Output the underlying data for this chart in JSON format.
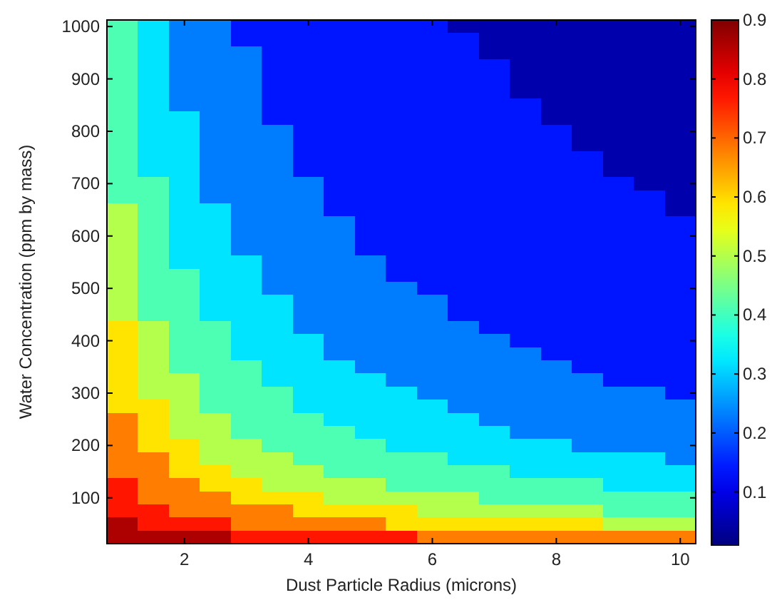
{
  "chart_data": {
    "type": "heatmap",
    "xlabel": "Dust Particle Radius (microns)",
    "ylabel": "Water Concentration (ppm by mass)",
    "categories": [
      null,
      null,
      "2",
      null,
      null,
      null,
      "4",
      null,
      null,
      null,
      "6",
      null,
      null,
      null,
      "8",
      null,
      null,
      null,
      "10"
    ],
    "y_categories": [
      "1000",
      null,
      null,
      null,
      "900",
      null,
      null,
      null,
      "800",
      null,
      null,
      null,
      "700",
      null,
      null,
      null,
      "600",
      null,
      null,
      null,
      "500",
      null,
      null,
      null,
      "400",
      null,
      null,
      null,
      "300",
      null,
      null,
      null,
      "200",
      null,
      null,
      null,
      "100",
      null,
      null,
      null
    ],
    "clim": [
      0.01,
      0.9
    ],
    "cticks": [
      0.1,
      0.2,
      0.3,
      0.4,
      0.5,
      0.6,
      0.7,
      0.8,
      0.9
    ],
    "cells": [
      [
        0.41,
        0.32,
        0.23,
        0.23,
        0.14,
        0.14,
        0.14,
        0.14,
        0.14,
        0.14,
        0.14,
        0.05,
        0.05,
        0.05,
        0.05,
        0.05,
        0.05,
        0.05,
        0.05
      ],
      [
        0.41,
        0.32,
        0.23,
        0.23,
        0.14,
        0.14,
        0.14,
        0.14,
        0.14,
        0.14,
        0.14,
        0.14,
        0.05,
        0.05,
        0.05,
        0.05,
        0.05,
        0.05,
        0.05
      ],
      [
        0.41,
        0.32,
        0.23,
        0.23,
        0.23,
        0.14,
        0.14,
        0.14,
        0.14,
        0.14,
        0.14,
        0.14,
        0.05,
        0.05,
        0.05,
        0.05,
        0.05,
        0.05,
        0.05
      ],
      [
        0.41,
        0.32,
        0.23,
        0.23,
        0.23,
        0.14,
        0.14,
        0.14,
        0.14,
        0.14,
        0.14,
        0.14,
        0.14,
        0.05,
        0.05,
        0.05,
        0.05,
        0.05,
        0.05
      ],
      [
        0.41,
        0.32,
        0.23,
        0.23,
        0.23,
        0.14,
        0.14,
        0.14,
        0.14,
        0.14,
        0.14,
        0.14,
        0.14,
        0.05,
        0.05,
        0.05,
        0.05,
        0.05,
        0.05
      ],
      [
        0.41,
        0.32,
        0.23,
        0.23,
        0.23,
        0.14,
        0.14,
        0.14,
        0.14,
        0.14,
        0.14,
        0.14,
        0.14,
        0.05,
        0.05,
        0.05,
        0.05,
        0.05,
        0.05
      ],
      [
        0.41,
        0.32,
        0.23,
        0.23,
        0.23,
        0.14,
        0.14,
        0.14,
        0.14,
        0.14,
        0.14,
        0.14,
        0.14,
        0.14,
        0.05,
        0.05,
        0.05,
        0.05,
        0.05
      ],
      [
        0.41,
        0.32,
        0.32,
        0.23,
        0.23,
        0.14,
        0.14,
        0.14,
        0.14,
        0.14,
        0.14,
        0.14,
        0.14,
        0.14,
        0.05,
        0.05,
        0.05,
        0.05,
        0.05
      ],
      [
        0.41,
        0.32,
        0.32,
        0.23,
        0.23,
        0.23,
        0.14,
        0.14,
        0.14,
        0.14,
        0.14,
        0.14,
        0.14,
        0.14,
        0.14,
        0.05,
        0.05,
        0.05,
        0.05
      ],
      [
        0.41,
        0.32,
        0.32,
        0.23,
        0.23,
        0.23,
        0.14,
        0.14,
        0.14,
        0.14,
        0.14,
        0.14,
        0.14,
        0.14,
        0.14,
        0.05,
        0.05,
        0.05,
        0.05
      ],
      [
        0.41,
        0.32,
        0.32,
        0.23,
        0.23,
        0.23,
        0.14,
        0.14,
        0.14,
        0.14,
        0.14,
        0.14,
        0.14,
        0.14,
        0.14,
        0.14,
        0.05,
        0.05,
        0.05
      ],
      [
        0.41,
        0.32,
        0.32,
        0.23,
        0.23,
        0.23,
        0.14,
        0.14,
        0.14,
        0.14,
        0.14,
        0.14,
        0.14,
        0.14,
        0.14,
        0.14,
        0.05,
        0.05,
        0.05
      ],
      [
        0.41,
        0.41,
        0.32,
        0.23,
        0.23,
        0.23,
        0.23,
        0.14,
        0.14,
        0.14,
        0.14,
        0.14,
        0.14,
        0.14,
        0.14,
        0.14,
        0.14,
        0.05,
        0.05
      ],
      [
        0.41,
        0.41,
        0.32,
        0.23,
        0.23,
        0.23,
        0.23,
        0.14,
        0.14,
        0.14,
        0.14,
        0.14,
        0.14,
        0.14,
        0.14,
        0.14,
        0.14,
        0.14,
        0.05
      ],
      [
        0.5,
        0.41,
        0.32,
        0.32,
        0.23,
        0.23,
        0.23,
        0.14,
        0.14,
        0.14,
        0.14,
        0.14,
        0.14,
        0.14,
        0.14,
        0.14,
        0.14,
        0.14,
        0.05
      ],
      [
        0.5,
        0.41,
        0.32,
        0.32,
        0.23,
        0.23,
        0.23,
        0.23,
        0.14,
        0.14,
        0.14,
        0.14,
        0.14,
        0.14,
        0.14,
        0.14,
        0.14,
        0.14,
        0.14
      ],
      [
        0.5,
        0.41,
        0.32,
        0.32,
        0.23,
        0.23,
        0.23,
        0.23,
        0.14,
        0.14,
        0.14,
        0.14,
        0.14,
        0.14,
        0.14,
        0.14,
        0.14,
        0.14,
        0.14
      ],
      [
        0.5,
        0.41,
        0.32,
        0.32,
        0.23,
        0.23,
        0.23,
        0.23,
        0.14,
        0.14,
        0.14,
        0.14,
        0.14,
        0.14,
        0.14,
        0.14,
        0.14,
        0.14,
        0.14
      ],
      [
        0.5,
        0.41,
        0.32,
        0.32,
        0.32,
        0.23,
        0.23,
        0.23,
        0.23,
        0.14,
        0.14,
        0.14,
        0.14,
        0.14,
        0.14,
        0.14,
        0.14,
        0.14,
        0.14
      ],
      [
        0.5,
        0.41,
        0.41,
        0.32,
        0.32,
        0.23,
        0.23,
        0.23,
        0.23,
        0.14,
        0.14,
        0.14,
        0.14,
        0.14,
        0.14,
        0.14,
        0.14,
        0.14,
        0.14
      ],
      [
        0.5,
        0.41,
        0.41,
        0.32,
        0.32,
        0.23,
        0.23,
        0.23,
        0.23,
        0.23,
        0.14,
        0.14,
        0.14,
        0.14,
        0.14,
        0.14,
        0.14,
        0.14,
        0.14
      ],
      [
        0.5,
        0.41,
        0.41,
        0.32,
        0.32,
        0.32,
        0.23,
        0.23,
        0.23,
        0.23,
        0.23,
        0.14,
        0.14,
        0.14,
        0.14,
        0.14,
        0.14,
        0.14,
        0.14
      ],
      [
        0.5,
        0.41,
        0.41,
        0.32,
        0.32,
        0.32,
        0.23,
        0.23,
        0.23,
        0.23,
        0.23,
        0.14,
        0.14,
        0.14,
        0.14,
        0.14,
        0.14,
        0.14,
        0.14
      ],
      [
        0.59,
        0.5,
        0.41,
        0.41,
        0.32,
        0.32,
        0.23,
        0.23,
        0.23,
        0.23,
        0.23,
        0.23,
        0.14,
        0.14,
        0.14,
        0.14,
        0.14,
        0.14,
        0.14
      ],
      [
        0.59,
        0.5,
        0.41,
        0.41,
        0.32,
        0.32,
        0.32,
        0.23,
        0.23,
        0.23,
        0.23,
        0.23,
        0.23,
        0.14,
        0.14,
        0.14,
        0.14,
        0.14,
        0.14
      ],
      [
        0.59,
        0.5,
        0.41,
        0.41,
        0.32,
        0.32,
        0.32,
        0.23,
        0.23,
        0.23,
        0.23,
        0.23,
        0.23,
        0.23,
        0.14,
        0.14,
        0.14,
        0.14,
        0.14
      ],
      [
        0.59,
        0.5,
        0.41,
        0.41,
        0.41,
        0.32,
        0.32,
        0.32,
        0.23,
        0.23,
        0.23,
        0.23,
        0.23,
        0.23,
        0.23,
        0.14,
        0.14,
        0.14,
        0.14
      ],
      [
        0.59,
        0.5,
        0.5,
        0.41,
        0.41,
        0.32,
        0.32,
        0.32,
        0.32,
        0.23,
        0.23,
        0.23,
        0.23,
        0.23,
        0.23,
        0.23,
        0.14,
        0.14,
        0.14
      ],
      [
        0.59,
        0.5,
        0.5,
        0.41,
        0.41,
        0.41,
        0.32,
        0.32,
        0.32,
        0.32,
        0.23,
        0.23,
        0.23,
        0.23,
        0.23,
        0.23,
        0.23,
        0.23,
        0.14
      ],
      [
        0.59,
        0.59,
        0.5,
        0.41,
        0.41,
        0.41,
        0.32,
        0.32,
        0.32,
        0.32,
        0.32,
        0.23,
        0.23,
        0.23,
        0.23,
        0.23,
        0.23,
        0.23,
        0.23
      ],
      [
        0.68,
        0.59,
        0.5,
        0.5,
        0.41,
        0.41,
        0.41,
        0.32,
        0.32,
        0.32,
        0.32,
        0.32,
        0.23,
        0.23,
        0.23,
        0.23,
        0.23,
        0.23,
        0.23
      ],
      [
        0.68,
        0.59,
        0.5,
        0.5,
        0.41,
        0.41,
        0.41,
        0.41,
        0.32,
        0.32,
        0.32,
        0.32,
        0.32,
        0.23,
        0.23,
        0.23,
        0.23,
        0.23,
        0.23
      ],
      [
        0.68,
        0.59,
        0.59,
        0.5,
        0.5,
        0.41,
        0.41,
        0.41,
        0.41,
        0.32,
        0.32,
        0.32,
        0.32,
        0.32,
        0.32,
        0.23,
        0.23,
        0.23,
        0.23
      ],
      [
        0.68,
        0.68,
        0.59,
        0.5,
        0.5,
        0.5,
        0.41,
        0.41,
        0.41,
        0.41,
        0.41,
        0.32,
        0.32,
        0.32,
        0.32,
        0.32,
        0.32,
        0.32,
        0.23
      ],
      [
        0.68,
        0.68,
        0.59,
        0.59,
        0.5,
        0.5,
        0.5,
        0.41,
        0.41,
        0.41,
        0.41,
        0.41,
        0.41,
        0.32,
        0.32,
        0.32,
        0.32,
        0.32,
        0.32
      ],
      [
        0.77,
        0.68,
        0.68,
        0.59,
        0.59,
        0.5,
        0.5,
        0.5,
        0.5,
        0.41,
        0.41,
        0.41,
        0.41,
        0.41,
        0.41,
        0.41,
        0.32,
        0.32,
        0.32
      ],
      [
        0.77,
        0.68,
        0.68,
        0.68,
        0.59,
        0.59,
        0.59,
        0.5,
        0.5,
        0.5,
        0.5,
        0.5,
        0.41,
        0.41,
        0.41,
        0.41,
        0.41,
        0.41,
        0.41
      ],
      [
        0.77,
        0.77,
        0.68,
        0.68,
        0.68,
        0.68,
        0.59,
        0.59,
        0.59,
        0.59,
        0.5,
        0.5,
        0.5,
        0.5,
        0.5,
        0.5,
        0.41,
        0.41,
        0.41
      ],
      [
        0.86,
        0.77,
        0.77,
        0.77,
        0.68,
        0.68,
        0.68,
        0.68,
        0.68,
        0.59,
        0.59,
        0.59,
        0.59,
        0.59,
        0.59,
        0.59,
        0.5,
        0.5,
        0.5
      ],
      [
        0.86,
        0.86,
        0.86,
        0.86,
        0.77,
        0.77,
        0.77,
        0.77,
        0.77,
        0.77,
        0.68,
        0.68,
        0.68,
        0.68,
        0.68,
        0.68,
        0.68,
        0.68,
        0.68
      ]
    ]
  }
}
